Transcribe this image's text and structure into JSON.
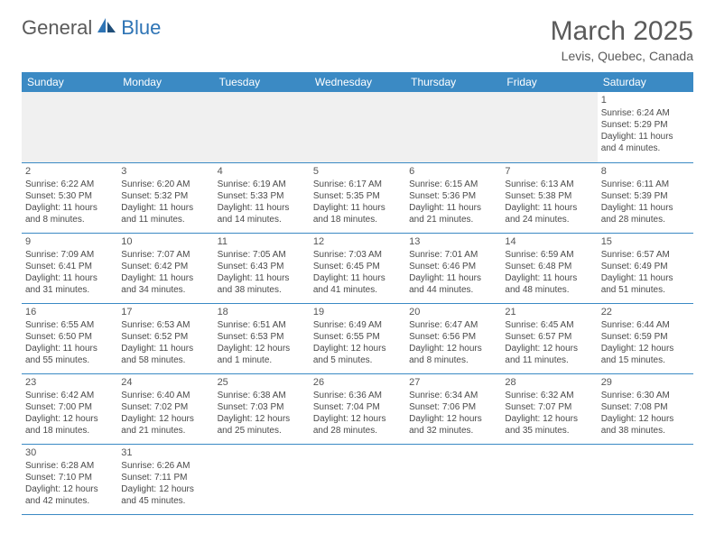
{
  "brand": {
    "general": "General",
    "blue": "Blue"
  },
  "title": "March 2025",
  "location": "Levis, Quebec, Canada",
  "colors": {
    "header_bg": "#3b8ac4",
    "header_fg": "#ffffff",
    "rule": "#3b8ac4",
    "brand_gray": "#5a5a5a",
    "brand_blue": "#2e74b5",
    "empty_bg": "#f0f0f0",
    "text": "#4a4a4a"
  },
  "weekdays": [
    "Sunday",
    "Monday",
    "Tuesday",
    "Wednesday",
    "Thursday",
    "Friday",
    "Saturday"
  ],
  "weeks": [
    [
      null,
      null,
      null,
      null,
      null,
      null,
      {
        "n": "1",
        "sunrise": "6:24 AM",
        "sunset": "5:29 PM",
        "daylight": "11 hours and 4 minutes."
      }
    ],
    [
      {
        "n": "2",
        "sunrise": "6:22 AM",
        "sunset": "5:30 PM",
        "daylight": "11 hours and 8 minutes."
      },
      {
        "n": "3",
        "sunrise": "6:20 AM",
        "sunset": "5:32 PM",
        "daylight": "11 hours and 11 minutes."
      },
      {
        "n": "4",
        "sunrise": "6:19 AM",
        "sunset": "5:33 PM",
        "daylight": "11 hours and 14 minutes."
      },
      {
        "n": "5",
        "sunrise": "6:17 AM",
        "sunset": "5:35 PM",
        "daylight": "11 hours and 18 minutes."
      },
      {
        "n": "6",
        "sunrise": "6:15 AM",
        "sunset": "5:36 PM",
        "daylight": "11 hours and 21 minutes."
      },
      {
        "n": "7",
        "sunrise": "6:13 AM",
        "sunset": "5:38 PM",
        "daylight": "11 hours and 24 minutes."
      },
      {
        "n": "8",
        "sunrise": "6:11 AM",
        "sunset": "5:39 PM",
        "daylight": "11 hours and 28 minutes."
      }
    ],
    [
      {
        "n": "9",
        "sunrise": "7:09 AM",
        "sunset": "6:41 PM",
        "daylight": "11 hours and 31 minutes."
      },
      {
        "n": "10",
        "sunrise": "7:07 AM",
        "sunset": "6:42 PM",
        "daylight": "11 hours and 34 minutes."
      },
      {
        "n": "11",
        "sunrise": "7:05 AM",
        "sunset": "6:43 PM",
        "daylight": "11 hours and 38 minutes."
      },
      {
        "n": "12",
        "sunrise": "7:03 AM",
        "sunset": "6:45 PM",
        "daylight": "11 hours and 41 minutes."
      },
      {
        "n": "13",
        "sunrise": "7:01 AM",
        "sunset": "6:46 PM",
        "daylight": "11 hours and 44 minutes."
      },
      {
        "n": "14",
        "sunrise": "6:59 AM",
        "sunset": "6:48 PM",
        "daylight": "11 hours and 48 minutes."
      },
      {
        "n": "15",
        "sunrise": "6:57 AM",
        "sunset": "6:49 PM",
        "daylight": "11 hours and 51 minutes."
      }
    ],
    [
      {
        "n": "16",
        "sunrise": "6:55 AM",
        "sunset": "6:50 PM",
        "daylight": "11 hours and 55 minutes."
      },
      {
        "n": "17",
        "sunrise": "6:53 AM",
        "sunset": "6:52 PM",
        "daylight": "11 hours and 58 minutes."
      },
      {
        "n": "18",
        "sunrise": "6:51 AM",
        "sunset": "6:53 PM",
        "daylight": "12 hours and 1 minute."
      },
      {
        "n": "19",
        "sunrise": "6:49 AM",
        "sunset": "6:55 PM",
        "daylight": "12 hours and 5 minutes."
      },
      {
        "n": "20",
        "sunrise": "6:47 AM",
        "sunset": "6:56 PM",
        "daylight": "12 hours and 8 minutes."
      },
      {
        "n": "21",
        "sunrise": "6:45 AM",
        "sunset": "6:57 PM",
        "daylight": "12 hours and 11 minutes."
      },
      {
        "n": "22",
        "sunrise": "6:44 AM",
        "sunset": "6:59 PM",
        "daylight": "12 hours and 15 minutes."
      }
    ],
    [
      {
        "n": "23",
        "sunrise": "6:42 AM",
        "sunset": "7:00 PM",
        "daylight": "12 hours and 18 minutes."
      },
      {
        "n": "24",
        "sunrise": "6:40 AM",
        "sunset": "7:02 PM",
        "daylight": "12 hours and 21 minutes."
      },
      {
        "n": "25",
        "sunrise": "6:38 AM",
        "sunset": "7:03 PM",
        "daylight": "12 hours and 25 minutes."
      },
      {
        "n": "26",
        "sunrise": "6:36 AM",
        "sunset": "7:04 PM",
        "daylight": "12 hours and 28 minutes."
      },
      {
        "n": "27",
        "sunrise": "6:34 AM",
        "sunset": "7:06 PM",
        "daylight": "12 hours and 32 minutes."
      },
      {
        "n": "28",
        "sunrise": "6:32 AM",
        "sunset": "7:07 PM",
        "daylight": "12 hours and 35 minutes."
      },
      {
        "n": "29",
        "sunrise": "6:30 AM",
        "sunset": "7:08 PM",
        "daylight": "12 hours and 38 minutes."
      }
    ],
    [
      {
        "n": "30",
        "sunrise": "6:28 AM",
        "sunset": "7:10 PM",
        "daylight": "12 hours and 42 minutes."
      },
      {
        "n": "31",
        "sunrise": "6:26 AM",
        "sunset": "7:11 PM",
        "daylight": "12 hours and 45 minutes."
      },
      null,
      null,
      null,
      null,
      null
    ]
  ],
  "labels": {
    "sunrise": "Sunrise:",
    "sunset": "Sunset:",
    "daylight": "Daylight:"
  }
}
